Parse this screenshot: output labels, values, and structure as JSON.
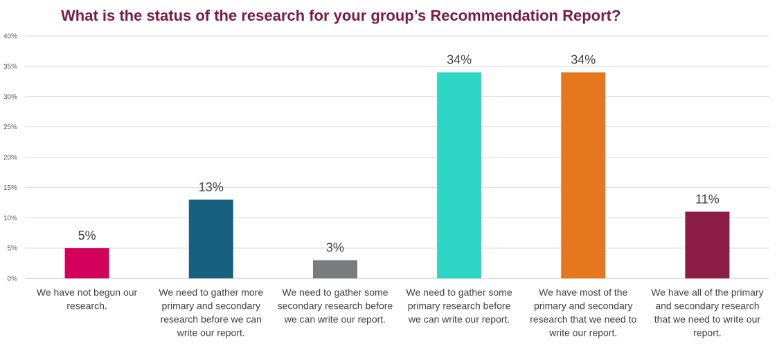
{
  "chart_data": {
    "type": "bar",
    "title": "What is the status of the research for your group’s Recommendation Report?",
    "categories": [
      [
        "We have not begun our",
        "research."
      ],
      [
        "We need to gather more",
        "primary and secondary",
        "research before we can",
        "write our report."
      ],
      [
        "We need to gather some",
        "secondary research before",
        "we can write our report."
      ],
      [
        "We need to gather some",
        "primary research before",
        "we can write our report."
      ],
      [
        "We have most of the",
        "primary and secondary",
        "research that we need to",
        "write our report."
      ],
      [
        "We have all of the primary",
        "and secondary research",
        "that we need to write our",
        "report."
      ]
    ],
    "values": [
      5,
      13,
      3,
      34,
      34,
      11
    ],
    "data_labels": [
      "5%",
      "13%",
      "3%",
      "34%",
      "34%",
      "11%"
    ],
    "bar_colors": [
      "#d2005a",
      "#17607f",
      "#7a7b7d",
      "#2dd6c5",
      "#e5771e",
      "#8b1d45"
    ],
    "ylim": [
      0,
      40
    ],
    "yticks": [
      0,
      5,
      10,
      15,
      20,
      25,
      30,
      35,
      40
    ],
    "ytick_labels": [
      "0%",
      "5%",
      "10%",
      "15%",
      "20%",
      "25%",
      "30%",
      "35%",
      "40%"
    ],
    "grid": true,
    "legend": "none",
    "colors": {
      "title": "#7b1a44",
      "grid": "#d9d9d9",
      "axis": "#bfbfbf"
    }
  }
}
